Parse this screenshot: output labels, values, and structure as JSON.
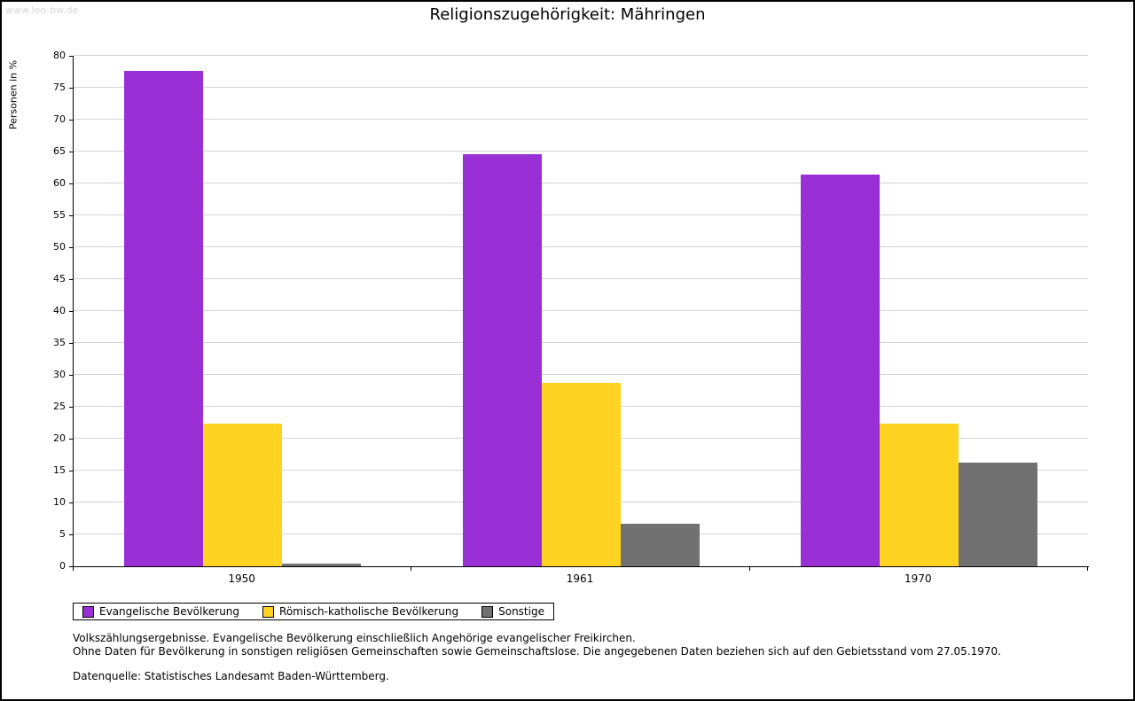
{
  "watermark": "www.leo-bw.de",
  "chart_data": {
    "type": "bar",
    "title": "Religionszugehörigkeit: Mähringen",
    "ylabel": "Personen in %",
    "ylim": [
      0,
      80
    ],
    "ytick_step": 5,
    "grid": true,
    "legend_position": "bottom",
    "categories": [
      "1950",
      "1961",
      "1970"
    ],
    "series": [
      {
        "name": "Evangelische Bevölkerung",
        "color": "#9b2fd6",
        "values": [
          77.7,
          64.6,
          61.4
        ]
      },
      {
        "name": "Römisch-katholische Bevölkerung",
        "color": "#ffd322",
        "values": [
          22.3,
          28.8,
          22.3
        ]
      },
      {
        "name": "Sonstige",
        "color": "#717171",
        "values": [
          0.4,
          6.6,
          16.3
        ]
      }
    ]
  },
  "footnotes": {
    "line1": "Volkszählungsergebnisse. Evangelische Bevölkerung einschließlich Angehörige evangelischer Freikirchen.",
    "line2": "Ohne Daten für Bevölkerung in sonstigen religiösen Gemeinschaften sowie Gemeinschaftslose. Die angegebenen Daten beziehen sich auf den Gebietsstand vom 27.05.1970.",
    "line3": "Datenquelle: Statistisches Landesamt Baden-Württemberg."
  }
}
